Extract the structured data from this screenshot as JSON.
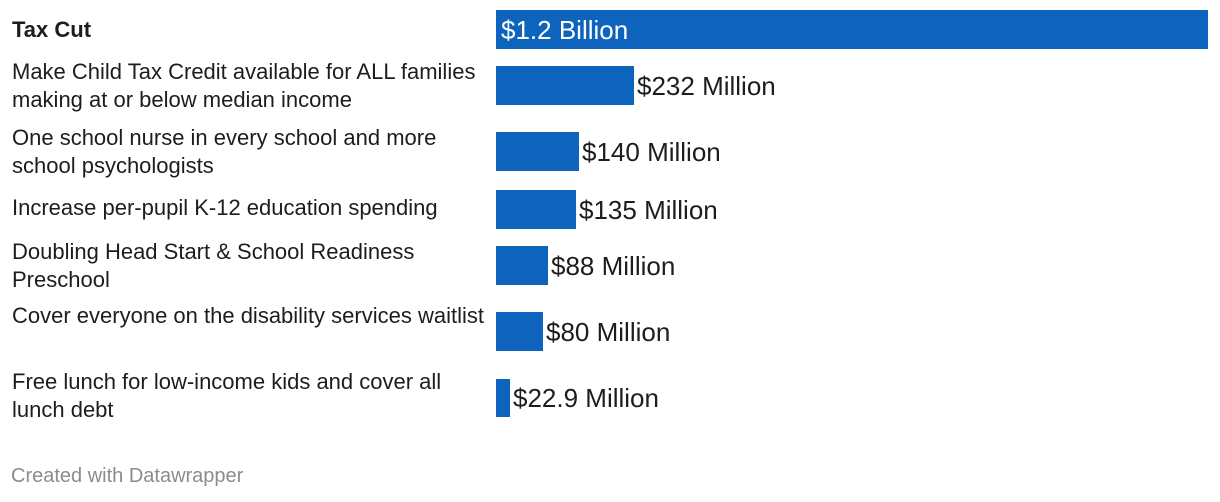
{
  "chart_data": {
    "type": "bar",
    "orientation": "horizontal",
    "categories": [
      "Tax Cut",
      "Make Child Tax Credit available for ALL families making at or below median income",
      "One school nurse in every school and more school psychologists",
      "Increase per-pupil K-12 education spending",
      "Doubling Head Start & School Readiness Preschool",
      "Cover everyone on the disability services waitlist",
      "Free lunch for low-income kids and cover all lunch debt"
    ],
    "values": [
      1200,
      232,
      140,
      135,
      88,
      80,
      22.9
    ],
    "value_unit": "Million dollars",
    "value_labels": [
      "$1.2 Billion",
      "$232 Million",
      "$140 Million",
      "$135 Million",
      "$88 Million",
      "$80 Million",
      "$22.9 Million"
    ],
    "bold_categories": [
      "Tax Cut"
    ],
    "xlim": [
      0,
      1200
    ],
    "grid": false,
    "bar_color": "#0e63bc"
  },
  "footer": {
    "credit": "Created with Datawrapper"
  }
}
